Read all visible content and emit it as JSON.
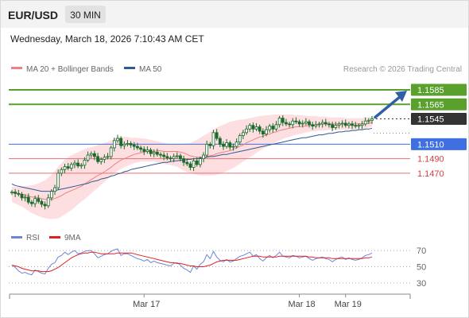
{
  "header": {
    "symbol": "EUR/USD",
    "timeframe": "30 MIN",
    "datetime": "Wednesday, March 18, 2026 7:10:43 AM CET"
  },
  "credit": "Research © 2026 Trading Central",
  "colors": {
    "candle": "#1a6b2a",
    "ma20_bb": "#f08080",
    "bb_fill": "#fdd9dc",
    "ma50": "#2f5a93",
    "resistance": "#5aa02c",
    "pivot": "#3f6fe0",
    "support": "#e87070",
    "rsi": "#6a86d6",
    "rsi_ma": "#e02020",
    "current": "#333333",
    "arrow": "#2f5fa7"
  },
  "chart_data": [
    {
      "type": "candlestick",
      "title": "EUR/USD 30 MIN",
      "legend": [
        {
          "name": "MA 20 + Bollinger Bands",
          "color": "#f08080"
        },
        {
          "name": "MA 50",
          "color": "#2f5a93"
        }
      ],
      "legend_position": "top-left",
      "x_tick_labels": [
        "Mar 17",
        "Mar 18",
        "Mar 19"
      ],
      "ylim": [
        1.1404,
        1.1607
      ],
      "grid": false,
      "levels": [
        {
          "value": 1.1585,
          "label": "1.1585",
          "kind": "resistance"
        },
        {
          "value": 1.1565,
          "label": "1.1565",
          "kind": "resistance"
        },
        {
          "value": 1.1545,
          "label": "1.1545",
          "kind": "current"
        },
        {
          "value": 1.151,
          "label": "1.1510",
          "kind": "pivot"
        },
        {
          "value": 1.149,
          "label": "1.1490",
          "kind": "support"
        },
        {
          "value": 1.147,
          "label": "1.1470",
          "kind": "support"
        }
      ],
      "close": [
        1.1444,
        1.1442,
        1.1441,
        1.1436,
        1.1437,
        1.143,
        1.1428,
        1.1435,
        1.1431,
        1.1427,
        1.1425,
        1.1436,
        1.1445,
        1.145,
        1.147,
        1.1475,
        1.1479,
        1.1477,
        1.1482,
        1.1484,
        1.148,
        1.1481,
        1.1488,
        1.1495,
        1.1497,
        1.1493,
        1.1486,
        1.1489,
        1.1492,
        1.1493,
        1.1505,
        1.1515,
        1.1518,
        1.1508,
        1.151,
        1.1511,
        1.1509,
        1.1507,
        1.1505,
        1.1503,
        1.15,
        1.1502,
        1.1497,
        1.1499,
        1.1496,
        1.1495,
        1.1493,
        1.1491,
        1.149,
        1.1493,
        1.1494,
        1.149,
        1.1485,
        1.1483,
        1.1478,
        1.1487,
        1.1482,
        1.149,
        1.1495,
        1.151,
        1.1508,
        1.1526,
        1.1518,
        1.151,
        1.1507,
        1.1512,
        1.1506,
        1.1507,
        1.1513,
        1.1522,
        1.1526,
        1.1531,
        1.1536,
        1.1531,
        1.1534,
        1.1528,
        1.1524,
        1.153,
        1.1535,
        1.1531,
        1.1537,
        1.1546,
        1.154,
        1.1538,
        1.1537,
        1.1542,
        1.1541,
        1.1538,
        1.1539,
        1.1541,
        1.1537,
        1.1535,
        1.1537,
        1.1538,
        1.154,
        1.1538,
        1.1537,
        1.1533,
        1.1536,
        1.1538,
        1.1539,
        1.1536,
        1.1538,
        1.1536,
        1.1535,
        1.1536,
        1.1538,
        1.1542,
        1.1543,
        1.1545
      ],
      "ma20": [
        1.1444,
        1.1443,
        1.1442,
        1.1441,
        1.144,
        1.1439,
        1.1437,
        1.1437,
        1.1436,
        1.1435,
        1.1434,
        1.1434,
        1.1434,
        1.1435,
        1.1437,
        1.1439,
        1.1442,
        1.1444,
        1.1446,
        1.1448,
        1.145,
        1.1452,
        1.1455,
        1.1458,
        1.1461,
        1.1464,
        1.1467,
        1.1469,
        1.1472,
        1.1475,
        1.1478,
        1.1482,
        1.1485,
        1.1488,
        1.149,
        1.1492,
        1.1494,
        1.1496,
        1.1497,
        1.1498,
        1.1499,
        1.15,
        1.15,
        1.15,
        1.1501,
        1.1501,
        1.15,
        1.15,
        1.15,
        1.15,
        1.15,
        1.1499,
        1.1498,
        1.1496,
        1.1494,
        1.1493,
        1.1492,
        1.1492,
        1.1492,
        1.1493,
        1.1494,
        1.1495,
        1.1497,
        1.1498,
        1.1499,
        1.15,
        1.1501,
        1.1503,
        1.1505,
        1.1507,
        1.1509,
        1.1512,
        1.1514,
        1.1516,
        1.1518,
        1.152,
        1.1521,
        1.1523,
        1.1524,
        1.1526,
        1.1527,
        1.1529,
        1.153,
        1.1531,
        1.1532,
        1.1533,
        1.1534,
        1.1534,
        1.1535,
        1.1535,
        1.1536,
        1.1536,
        1.1537,
        1.1537,
        1.1538,
        1.1538,
        1.1538,
        1.1538,
        1.1538,
        1.1538,
        1.1538,
        1.1538,
        1.1538,
        1.1538,
        1.1538,
        1.1538,
        1.1538,
        1.1538,
        1.1539,
        1.154
      ],
      "bb_upper": [
        1.1452,
        1.1451,
        1.1451,
        1.1452,
        1.1452,
        1.1453,
        1.1453,
        1.1454,
        1.1456,
        1.1458,
        1.146,
        1.1464,
        1.1468,
        1.1473,
        1.1479,
        1.1484,
        1.1488,
        1.1492,
        1.1495,
        1.1497,
        1.1499,
        1.1501,
        1.1503,
        1.1505,
        1.1506,
        1.1507,
        1.1509,
        1.151,
        1.1512,
        1.1513,
        1.1515,
        1.1518,
        1.152,
        1.152,
        1.152,
        1.152,
        1.1519,
        1.1519,
        1.1519,
        1.1518,
        1.1518,
        1.1517,
        1.1516,
        1.1515,
        1.1514,
        1.1513,
        1.1512,
        1.1511,
        1.151,
        1.151,
        1.151,
        1.151,
        1.1511,
        1.1511,
        1.1512,
        1.1514,
        1.1516,
        1.1519,
        1.1522,
        1.1524,
        1.1527,
        1.153,
        1.1533,
        1.1535,
        1.1537,
        1.1539,
        1.1541,
        1.1542,
        1.1543,
        1.1544,
        1.1544,
        1.1545,
        1.1546,
        1.1547,
        1.1548,
        1.1549,
        1.1549,
        1.155,
        1.155,
        1.1551,
        1.1551,
        1.1551,
        1.1551,
        1.1551,
        1.1551,
        1.1551,
        1.155,
        1.155,
        1.155,
        1.1549,
        1.1549,
        1.1549,
        1.1549,
        1.1548,
        1.1548,
        1.1548,
        1.1547,
        1.1547,
        1.1547,
        1.1547,
        1.1547,
        1.1546,
        1.1546,
        1.1546,
        1.1546,
        1.1546,
        1.1546,
        1.1547,
        1.1547,
        1.1548
      ],
      "bb_lower": [
        1.143,
        1.1428,
        1.1426,
        1.1424,
        1.1421,
        1.1418,
        1.1415,
        1.1413,
        1.1411,
        1.1409,
        1.1408,
        1.1407,
        1.1407,
        1.1407,
        1.1408,
        1.141,
        1.1413,
        1.1416,
        1.1419,
        1.1423,
        1.1427,
        1.1431,
        1.1434,
        1.1438,
        1.1442,
        1.1446,
        1.145,
        1.1454,
        1.1458,
        1.1462,
        1.1466,
        1.147,
        1.1473,
        1.1476,
        1.1478,
        1.148,
        1.1482,
        1.1484,
        1.1485,
        1.1486,
        1.1486,
        1.1486,
        1.1486,
        1.1486,
        1.1485,
        1.1484,
        1.1483,
        1.1482,
        1.1481,
        1.148,
        1.1479,
        1.1476,
        1.1474,
        1.1472,
        1.147,
        1.1469,
        1.1468,
        1.1467,
        1.1467,
        1.1467,
        1.1467,
        1.1467,
        1.1468,
        1.1469,
        1.1471,
        1.1473,
        1.1475,
        1.1477,
        1.148,
        1.1483,
        1.1486,
        1.1489,
        1.1492,
        1.1495,
        1.1498,
        1.1501,
        1.1504,
        1.1506,
        1.1509,
        1.1511,
        1.1513,
        1.1515,
        1.1517,
        1.1519,
        1.152,
        1.1522,
        1.1523,
        1.1524,
        1.1525,
        1.1526,
        1.1527,
        1.1528,
        1.1528,
        1.1529,
        1.1529,
        1.1529,
        1.153,
        1.153,
        1.153,
        1.153,
        1.153,
        1.153,
        1.153,
        1.153,
        1.153,
        1.153,
        1.1531,
        1.1532,
        1.1533,
        1.1534
      ],
      "ma50": [
        1.1455,
        1.1453,
        1.1452,
        1.1451,
        1.145,
        1.1449,
        1.1448,
        1.1447,
        1.1446,
        1.1445,
        1.1445,
        1.1445,
        1.1445,
        1.1446,
        1.1447,
        1.1448,
        1.1449,
        1.145,
        1.1451,
        1.1452,
        1.1453,
        1.1454,
        1.1455,
        1.1456,
        1.1458,
        1.1459,
        1.146,
        1.1462,
        1.1463,
        1.1464,
        1.1466,
        1.1467,
        1.1469,
        1.147,
        1.1472,
        1.1473,
        1.1475,
        1.1476,
        1.1477,
        1.1478,
        1.1479,
        1.148,
        1.1481,
        1.1482,
        1.1483,
        1.1484,
        1.1485,
        1.1485,
        1.1486,
        1.1487,
        1.1487,
        1.1488,
        1.1488,
        1.1489,
        1.1489,
        1.149,
        1.149,
        1.1491,
        1.1491,
        1.1492,
        1.1493,
        1.1493,
        1.1494,
        1.1495,
        1.1496,
        1.1496,
        1.1497,
        1.1498,
        1.1499,
        1.15,
        1.1501,
        1.1502,
        1.1503,
        1.1504,
        1.1505,
        1.1506,
        1.1507,
        1.1508,
        1.1509,
        1.151,
        1.1511,
        1.1512,
        1.1513,
        1.1514,
        1.1515,
        1.1516,
        1.1517,
        1.1518,
        1.1519,
        1.1519,
        1.152,
        1.1521,
        1.1522,
        1.1523,
        1.1523,
        1.1524,
        1.1525,
        1.1525,
        1.1526,
        1.1527,
        1.1527,
        1.1528,
        1.1528,
        1.1529,
        1.1529,
        1.153,
        1.153,
        1.1531,
        1.1531,
        1.1532
      ]
    },
    {
      "type": "line",
      "legend": [
        {
          "name": "RSI",
          "color": "#6a86d6"
        },
        {
          "name": "9MA",
          "color": "#e02020"
        }
      ],
      "ylim": [
        20,
        80
      ],
      "y_ticks": [
        70,
        50,
        30
      ],
      "rsi": [
        52,
        49,
        45,
        42,
        43,
        41,
        40,
        46,
        44,
        42,
        41,
        48,
        53,
        55,
        62,
        64,
        68,
        65,
        68,
        70,
        66,
        67,
        69,
        70,
        70,
        66,
        61,
        63,
        65,
        66,
        69,
        71,
        72,
        64,
        66,
        66,
        64,
        62,
        60,
        59,
        57,
        59,
        55,
        57,
        55,
        54,
        53,
        52,
        51,
        54,
        55,
        52,
        48,
        46,
        43,
        51,
        47,
        53,
        56,
        65,
        60,
        69,
        62,
        58,
        56,
        59,
        56,
        57,
        60,
        63,
        64,
        66,
        68,
        63,
        65,
        60,
        57,
        61,
        64,
        61,
        64,
        68,
        63,
        62,
        61,
        64,
        63,
        61,
        62,
        63,
        60,
        58,
        60,
        61,
        62,
        60,
        59,
        56,
        59,
        61,
        62,
        59,
        61,
        59,
        58,
        59,
        61,
        64,
        65,
        67
      ],
      "rsi_ma": [
        52,
        51,
        50,
        48,
        47,
        46,
        45,
        45,
        45,
        44,
        44,
        44,
        45,
        47,
        49,
        52,
        55,
        58,
        61,
        63,
        65,
        66,
        67,
        67,
        68,
        68,
        67,
        66,
        66,
        66,
        66,
        66,
        67,
        67,
        67,
        67,
        67,
        66,
        65,
        64,
        63,
        62,
        61,
        60,
        59,
        58,
        57,
        56,
        55,
        55,
        54,
        54,
        53,
        52,
        51,
        51,
        50,
        50,
        50,
        51,
        52,
        54,
        56,
        57,
        58,
        58,
        58,
        58,
        58,
        59,
        60,
        61,
        62,
        63,
        63,
        63,
        62,
        62,
        62,
        62,
        62,
        63,
        63,
        63,
        63,
        63,
        63,
        63,
        63,
        63,
        62,
        62,
        61,
        61,
        61,
        61,
        61,
        60,
        60,
        60,
        60,
        60,
        60,
        60,
        60,
        60,
        60,
        61,
        61,
        62
      ]
    }
  ]
}
